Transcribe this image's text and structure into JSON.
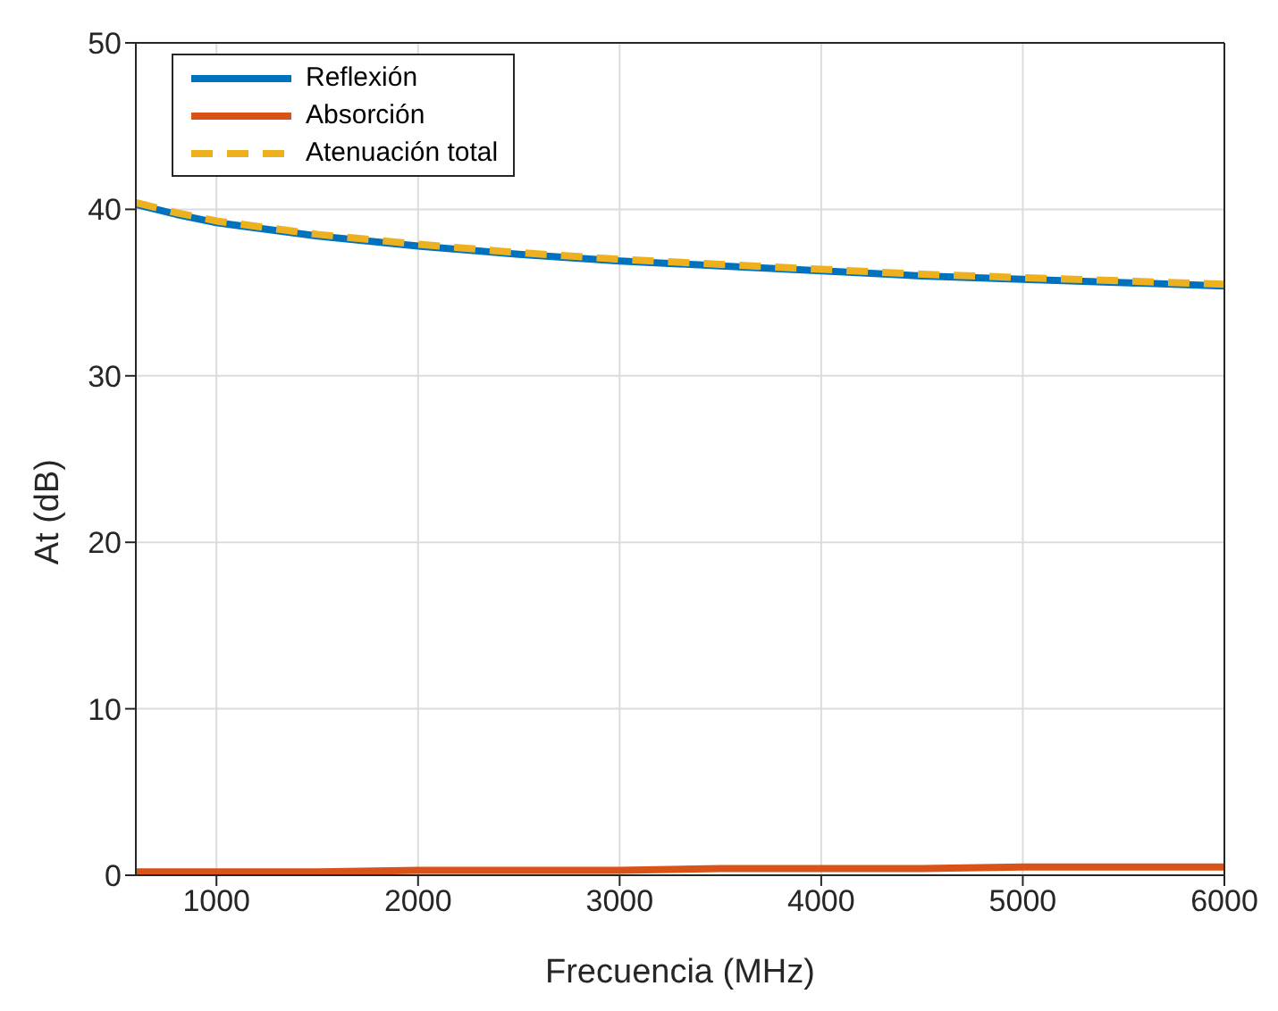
{
  "chart_data": {
    "type": "line",
    "xlabel": "Frecuencia (MHz)",
    "ylabel": "At (dB)",
    "x": [
      600,
      800,
      1000,
      1500,
      2000,
      2500,
      3000,
      3500,
      4000,
      4500,
      5000,
      5500,
      6000
    ],
    "series": [
      {
        "name": "Reflexión",
        "color": "#0072bd",
        "line_style": "solid",
        "values": [
          40.3,
          39.7,
          39.2,
          38.4,
          37.8,
          37.3,
          36.9,
          36.6,
          36.3,
          36.0,
          35.8,
          35.6,
          35.4
        ]
      },
      {
        "name": "Absorción",
        "color": "#d95319",
        "line_style": "solid",
        "values": [
          0.2,
          0.2,
          0.2,
          0.2,
          0.3,
          0.3,
          0.3,
          0.4,
          0.4,
          0.4,
          0.5,
          0.5,
          0.5
        ]
      },
      {
        "name": "Atenuación total",
        "color": "#edb120",
        "line_style": "dashed",
        "values": [
          40.4,
          39.8,
          39.3,
          38.5,
          37.9,
          37.4,
          37.0,
          36.7,
          36.4,
          36.1,
          35.9,
          35.7,
          35.5
        ]
      }
    ],
    "xlim": [
      600,
      6000
    ],
    "xticks": [
      1000,
      2000,
      3000,
      4000,
      5000,
      6000
    ],
    "ylim": [
      0,
      50
    ],
    "yticks": [
      0,
      10,
      20,
      30,
      40,
      50
    ],
    "grid": true,
    "legend": "top left",
    "marker": "none"
  }
}
